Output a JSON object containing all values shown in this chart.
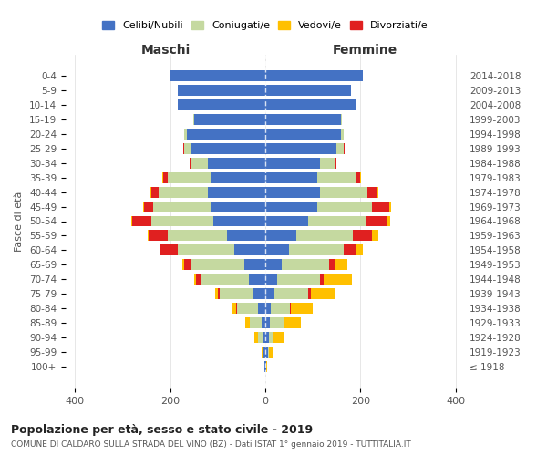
{
  "age_groups": [
    "100+",
    "95-99",
    "90-94",
    "85-89",
    "80-84",
    "75-79",
    "70-74",
    "65-69",
    "60-64",
    "55-59",
    "50-54",
    "45-49",
    "40-44",
    "35-39",
    "30-34",
    "25-29",
    "20-24",
    "15-19",
    "10-14",
    "5-9",
    "0-4"
  ],
  "birth_years": [
    "≤ 1918",
    "1919-1923",
    "1924-1928",
    "1929-1933",
    "1934-1938",
    "1939-1943",
    "1944-1948",
    "1949-1953",
    "1954-1958",
    "1959-1963",
    "1964-1968",
    "1969-1973",
    "1974-1978",
    "1979-1983",
    "1984-1988",
    "1989-1993",
    "1994-1998",
    "1999-2003",
    "2004-2008",
    "2009-2013",
    "2014-2018"
  ],
  "colors": {
    "celibi": "#4472c4",
    "coniugati": "#c5d9a0",
    "vedovi": "#ffc000",
    "divorziati": "#e02020"
  },
  "maschi": {
    "celibi": [
      2,
      4,
      5,
      8,
      15,
      25,
      35,
      45,
      65,
      80,
      110,
      115,
      120,
      115,
      120,
      155,
      165,
      150,
      185,
      185,
      200
    ],
    "coniugati": [
      0,
      2,
      10,
      25,
      45,
      70,
      100,
      110,
      120,
      125,
      130,
      120,
      105,
      90,
      35,
      15,
      5,
      2,
      0,
      0,
      0
    ],
    "vedovi": [
      0,
      2,
      8,
      10,
      8,
      5,
      5,
      5,
      3,
      2,
      2,
      2,
      1,
      1,
      0,
      0,
      0,
      0,
      0,
      0,
      0
    ],
    "divorziati": [
      0,
      0,
      0,
      0,
      2,
      5,
      10,
      15,
      35,
      40,
      40,
      20,
      15,
      10,
      5,
      2,
      0,
      0,
      0,
      0,
      0
    ]
  },
  "femmine": {
    "celibi": [
      2,
      5,
      8,
      10,
      12,
      20,
      25,
      35,
      50,
      65,
      90,
      110,
      115,
      110,
      115,
      150,
      160,
      160,
      190,
      180,
      205
    ],
    "coniugati": [
      0,
      2,
      8,
      30,
      40,
      70,
      90,
      100,
      115,
      120,
      120,
      115,
      100,
      80,
      30,
      15,
      5,
      2,
      0,
      0,
      0
    ],
    "vedovi": [
      2,
      8,
      25,
      35,
      45,
      50,
      60,
      25,
      15,
      12,
      8,
      5,
      2,
      1,
      0,
      0,
      0,
      0,
      0,
      0,
      0
    ],
    "divorziati": [
      0,
      0,
      0,
      0,
      2,
      5,
      8,
      12,
      25,
      40,
      45,
      35,
      20,
      10,
      5,
      2,
      0,
      0,
      0,
      0,
      0
    ]
  },
  "title": "Popolazione per età, sesso e stato civile - 2019",
  "subtitle": "COMUNE DI CALDARO SULLA STRADA DEL VINO (BZ) - Dati ISTAT 1° gennaio 2019 - TUTTITALIA.IT",
  "xlabel_left": "Maschi",
  "xlabel_right": "Femmine",
  "ylabel_left": "Fasce di età",
  "xlim": 420,
  "background_color": "#ffffff",
  "legend_labels": [
    "Celibi/Nubili",
    "Coniugati/e",
    "Vedovi/e",
    "Divorziati/e"
  ]
}
